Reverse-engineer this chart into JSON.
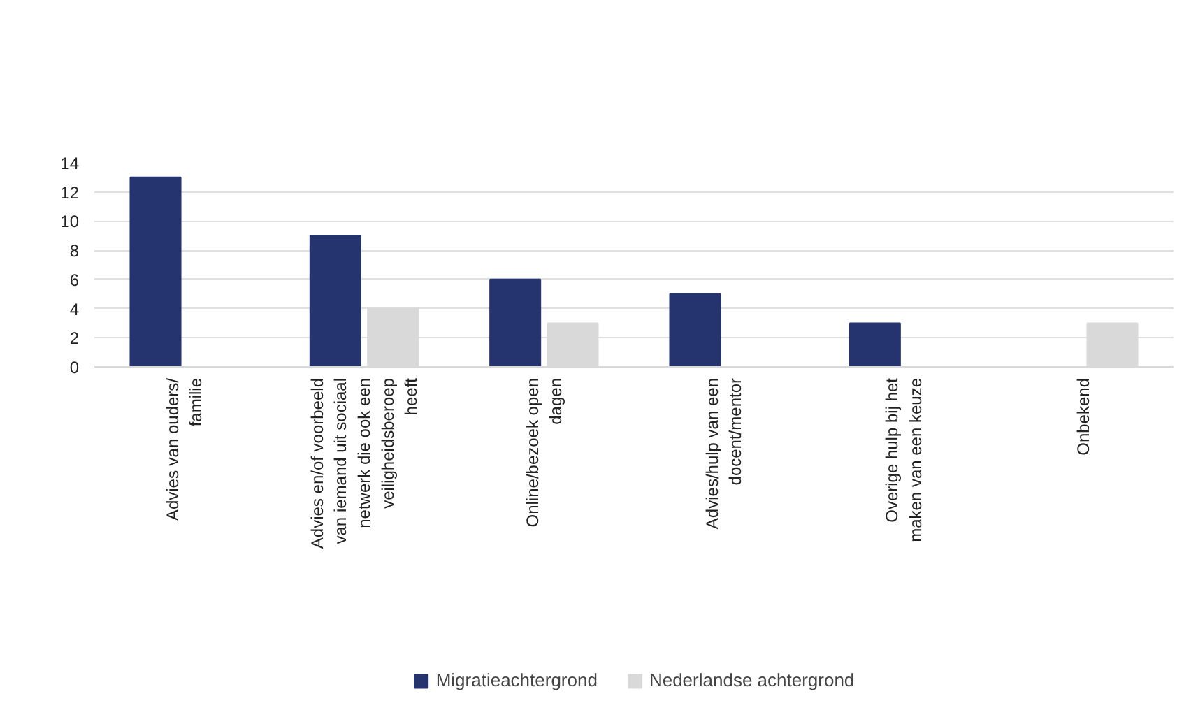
{
  "chart_data": {
    "type": "bar",
    "categories": [
      "Advies van ouders/\nfamilie",
      "Advies en/of voorbeeld\nvan iemand uit sociaal\nnetwerk die ook een\nveiligheidsberoep\nheeft",
      "Online/bezoek open\ndagen",
      "Advies/hulp van een\ndocent/mentor",
      "Overige hulp bij het\nmaken van een keuze",
      "Onbekend"
    ],
    "series": [
      {
        "name": "Migratieachtergrond",
        "color": "#25346f",
        "values": [
          13,
          9,
          6,
          5,
          3,
          null
        ]
      },
      {
        "name": "Nederlandse achtergrond",
        "color": "#d9d9d9",
        "values": [
          null,
          4,
          3,
          null,
          null,
          3
        ]
      }
    ],
    "ylim": [
      0,
      14
    ],
    "yticks": [
      0,
      2,
      4,
      6,
      8,
      10,
      12,
      14
    ],
    "grid": "y",
    "legend": "bottom"
  }
}
